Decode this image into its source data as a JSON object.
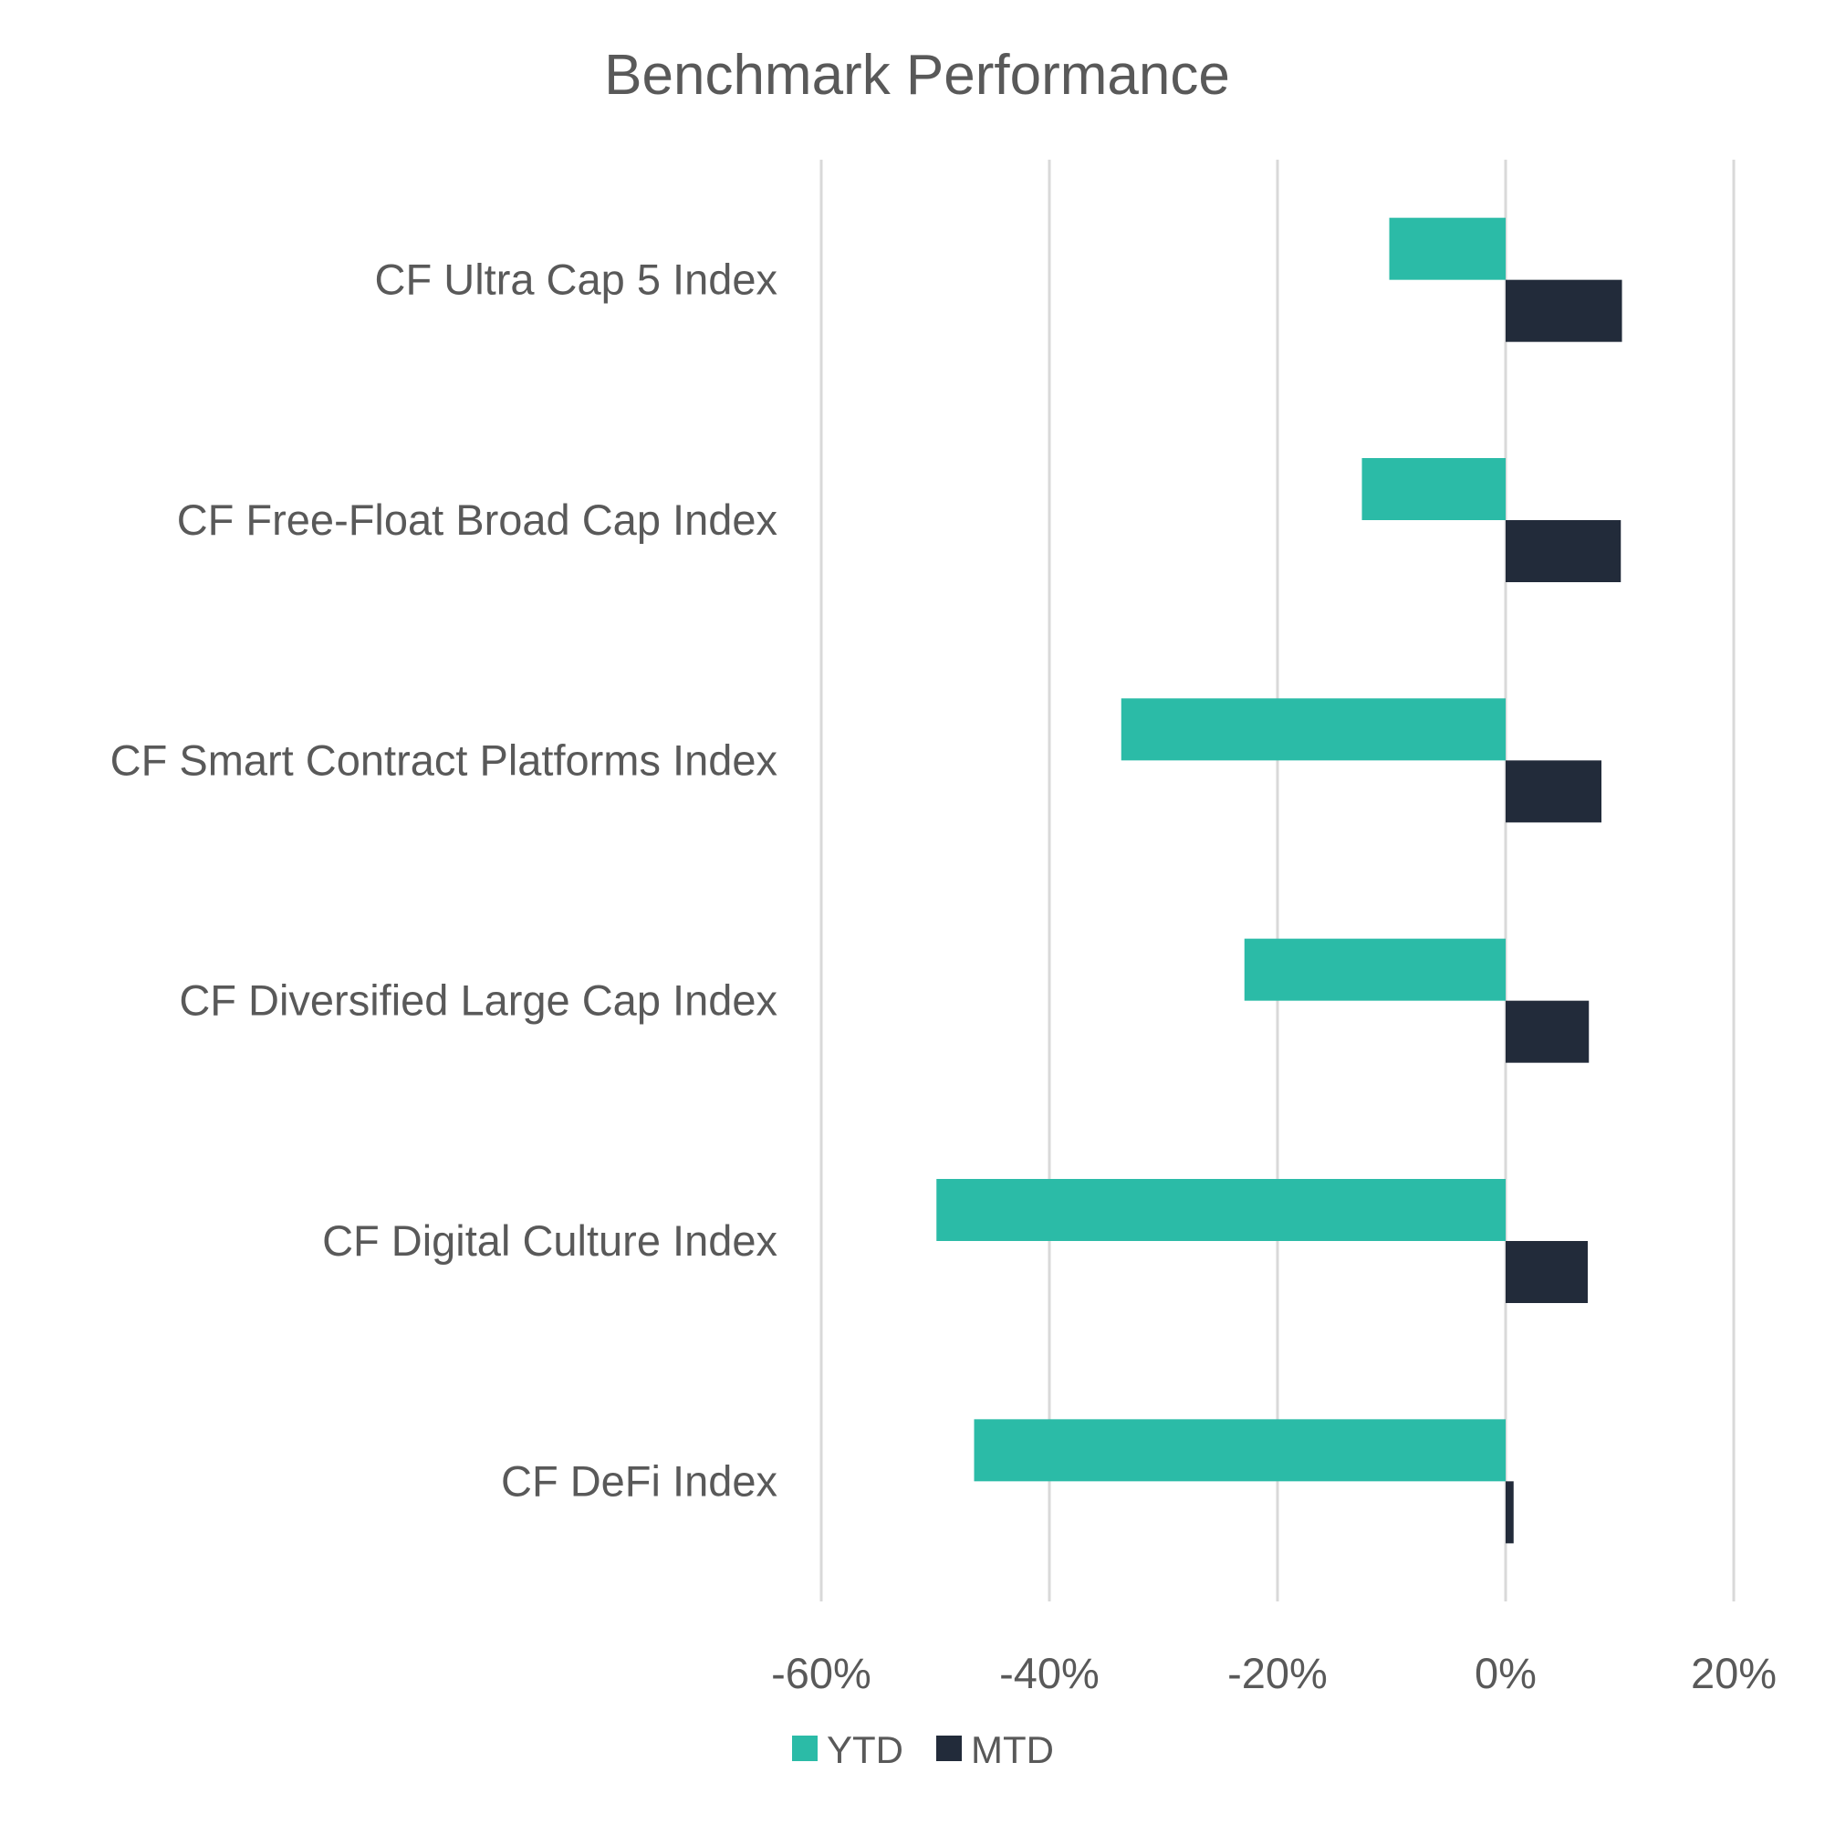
{
  "chart_data": {
    "type": "bar",
    "orientation": "horizontal",
    "title": "Benchmark Performance",
    "categories": [
      "CF Ultra Cap 5 Index",
      "CF Free-Float Broad Cap Index",
      "CF Smart Contract Platforms Index",
      "CF Diversified Large Cap Index",
      "CF Digital Culture Index",
      "CF DeFi Index"
    ],
    "series": [
      {
        "name": "YTD",
        "color": "#2bbba7",
        "values": [
          -10.2,
          -12.6,
          -33.7,
          -22.9,
          -49.9,
          -46.6
        ]
      },
      {
        "name": "MTD",
        "color": "#222b3a",
        "values": [
          10.2,
          10.1,
          8.4,
          7.3,
          7.2,
          0.7
        ]
      }
    ],
    "xlim": [
      -60,
      20
    ],
    "xticks": [
      -60,
      -40,
      -20,
      0,
      20
    ],
    "xtick_labels": [
      "-60%",
      "-40%",
      "-20%",
      "0%",
      "20%"
    ],
    "xlabel": "",
    "ylabel": "",
    "grid": "vertical",
    "legend": "bottom-center"
  }
}
